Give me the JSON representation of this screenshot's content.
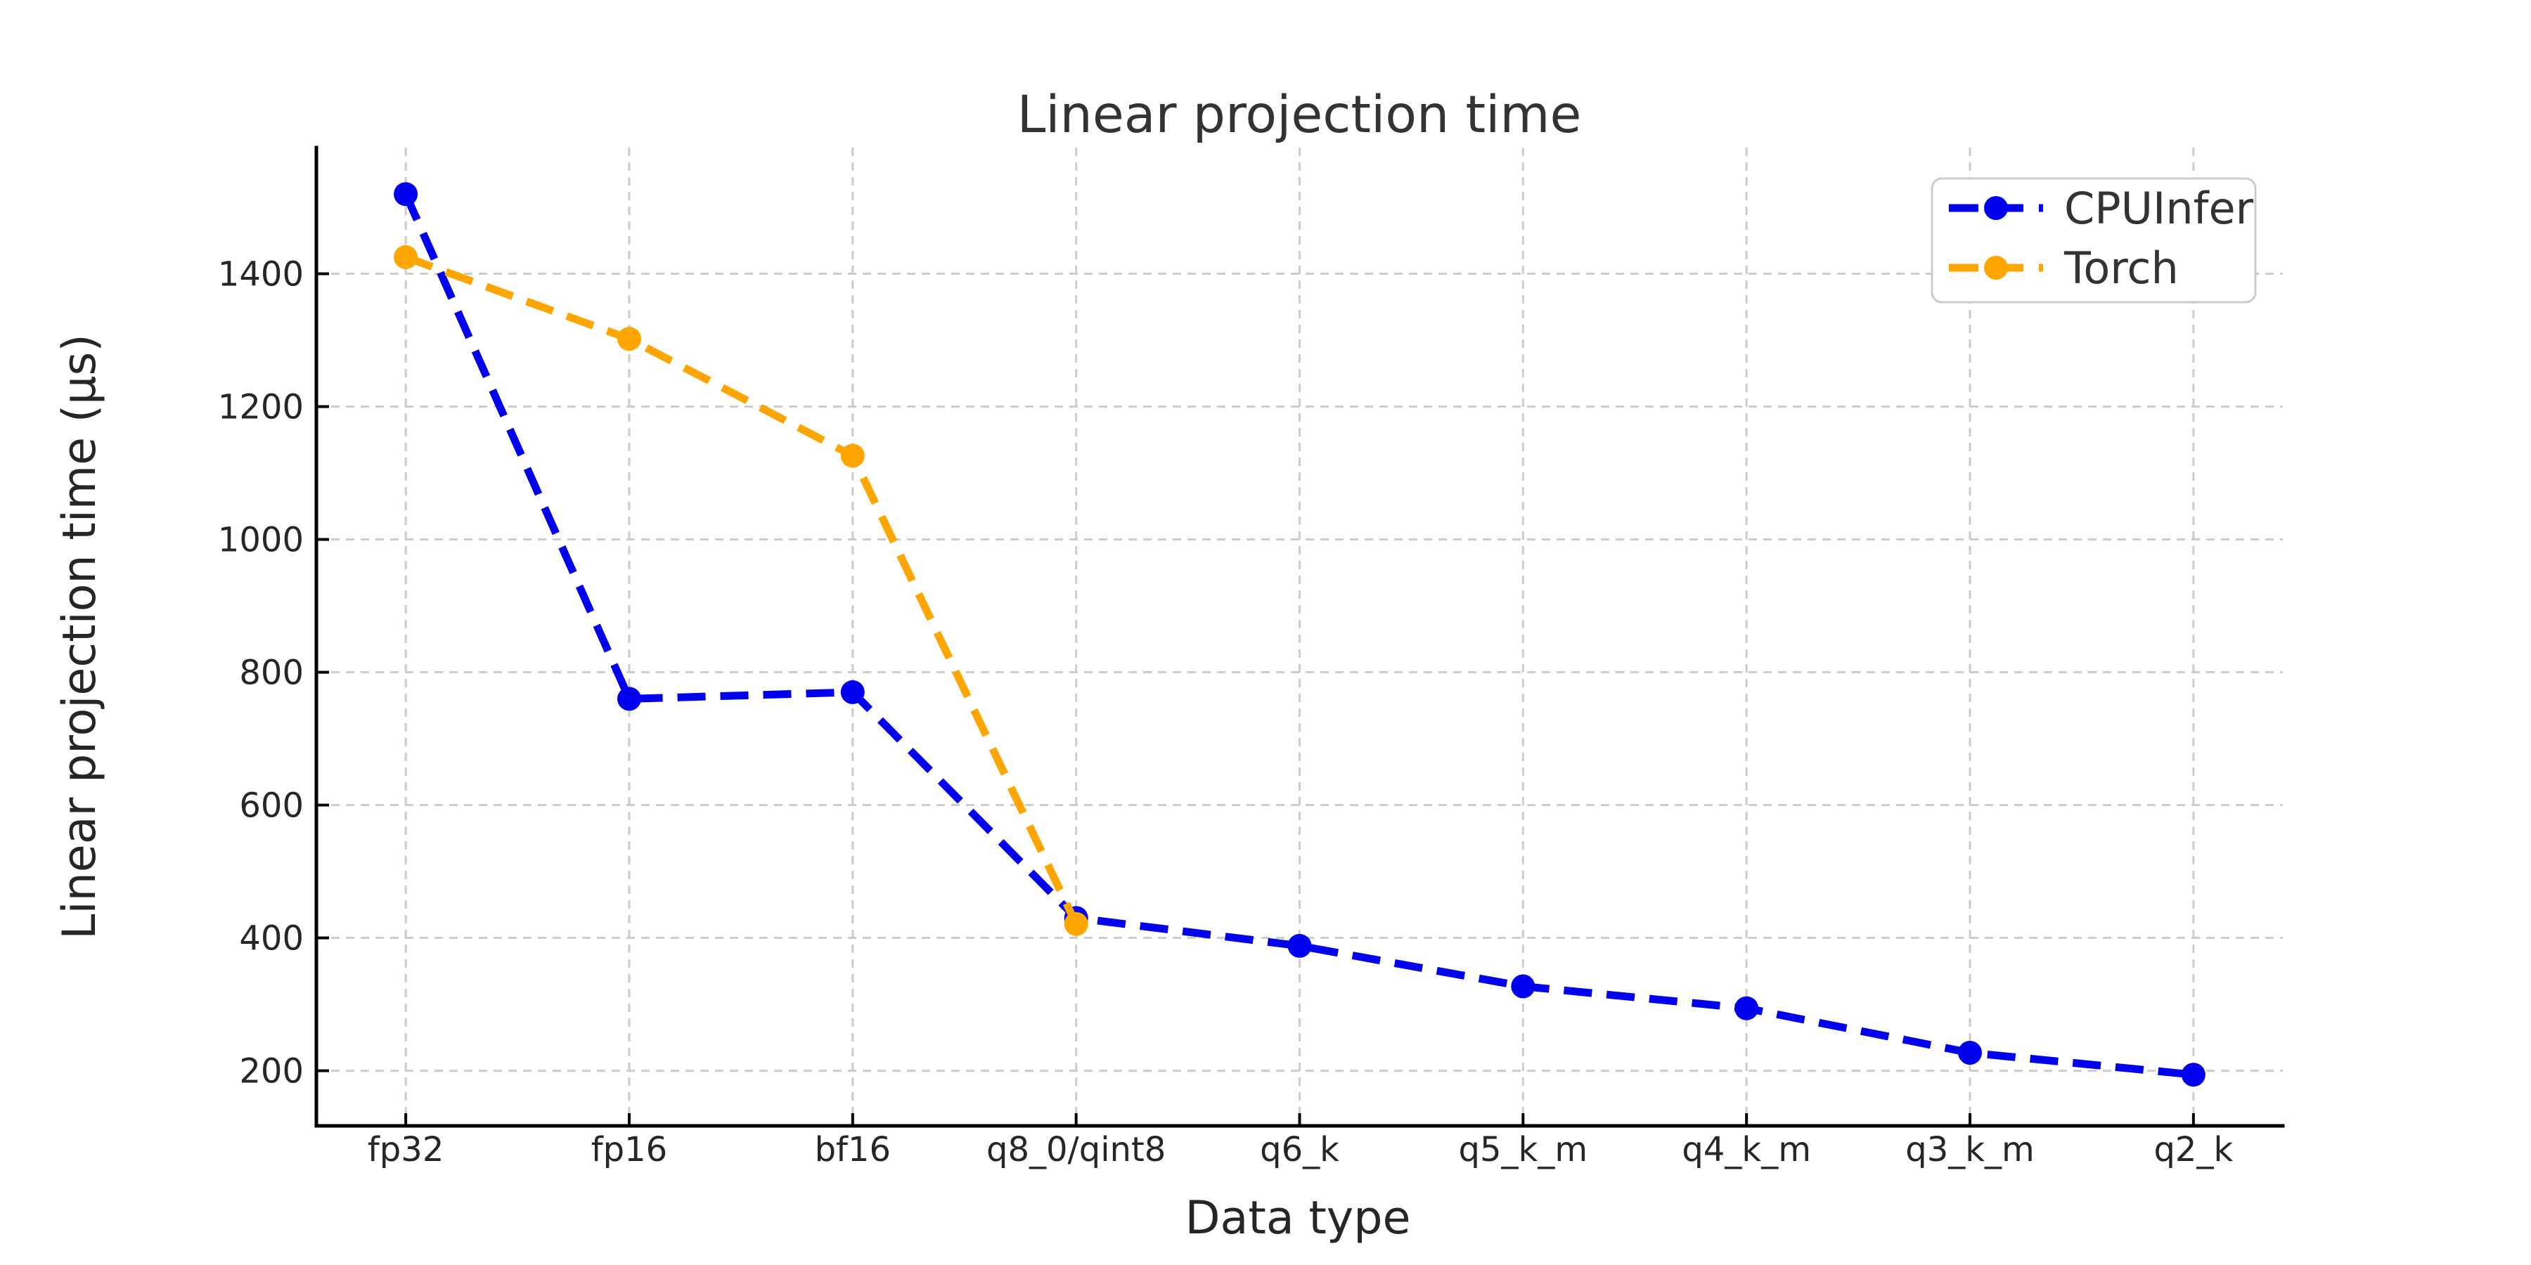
{
  "figure": {
    "background": "#ffffff"
  },
  "chart_data": {
    "type": "line",
    "title": "Linear projection time",
    "xlabel": "Data type",
    "ylabel": "Linear projection time (μs)",
    "categories": [
      "fp32",
      "fp16",
      "bf16",
      "q8_0/qint8",
      "q6_k",
      "q5_k_m",
      "q4_k_m",
      "q3_k_m",
      "q2_k"
    ],
    "series": [
      {
        "name": "CPUInfer",
        "color": "#0000ee",
        "linestyle": "dashed",
        "marker": "circle",
        "values": [
          1520,
          760,
          770,
          430,
          388,
          327,
          294,
          227,
          194
        ]
      },
      {
        "name": "Torch",
        "color": "#ffa500",
        "linestyle": "dashed",
        "marker": "circle",
        "values": [
          1425,
          1302,
          1126,
          421,
          null,
          null,
          null,
          null,
          null
        ]
      }
    ],
    "yticks": [
      200,
      400,
      600,
      800,
      1000,
      1200,
      1400
    ],
    "ylim": [
      117,
      1590
    ],
    "xlim": [
      -0.4,
      8.4
    ],
    "grid": true,
    "grid_color": "#cccccc",
    "axis_color": "#000000",
    "tick_direction": "in",
    "legend": {
      "position": "upper right",
      "border_color": "#cccccc",
      "background": "#ffffff"
    }
  }
}
